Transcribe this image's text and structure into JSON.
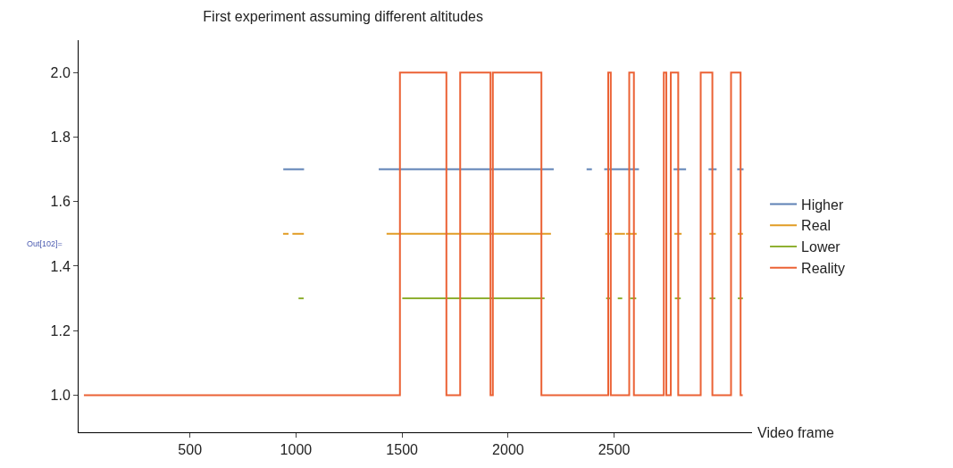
{
  "chart_data": {
    "type": "line",
    "title": "First experiment assuming different altitudes",
    "xlabel": "Video frame",
    "annotations": [
      "Out[102]="
    ],
    "xlim": [
      -25,
      3150
    ],
    "xticks": [
      500,
      1000,
      1500,
      2000,
      2500
    ],
    "ylim": [
      0.885,
      2.1
    ],
    "yticks": [
      {
        "value": 1.0,
        "label": "1.0"
      },
      {
        "value": 1.2,
        "label": "1.2"
      },
      {
        "value": 1.4,
        "label": "1.4"
      },
      {
        "value": 1.6,
        "label": "1.6"
      },
      {
        "value": 1.8,
        "label": "1.8"
      },
      {
        "value": 2.0,
        "label": "2.0"
      }
    ],
    "legend": "right",
    "series": [
      {
        "name": "Higher",
        "color": "#5e81b5",
        "x": [
          940,
          1038,
          1039,
          1390,
          2215,
          2216,
          2370,
          2395,
          2396,
          2453,
          2617,
          2618,
          2780,
          2839,
          2840,
          2945,
          2983,
          2984,
          3080,
          3110
        ],
        "values": [
          1.7,
          1.7,
          null,
          1.7,
          1.7,
          null,
          1.7,
          1.7,
          null,
          1.7,
          1.7,
          null,
          1.7,
          1.7,
          null,
          1.7,
          1.7,
          null,
          1.7,
          1.7
        ]
      },
      {
        "name": "Real",
        "color": "#e19c24",
        "x": [
          939,
          965,
          966,
          983,
          1037,
          1038,
          1427,
          2202,
          2203,
          2458,
          2488,
          2489,
          2501,
          2551,
          2552,
          2556,
          2606,
          2607,
          2784,
          2818,
          2819,
          2949,
          2979,
          2980,
          3083,
          3107
        ],
        "values": [
          1.5,
          1.5,
          null,
          1.5,
          1.5,
          null,
          1.5,
          1.5,
          null,
          1.5,
          1.5,
          null,
          1.5,
          1.5,
          null,
          1.5,
          1.5,
          null,
          1.5,
          1.5,
          null,
          1.5,
          1.5,
          null,
          1.5,
          1.5
        ]
      },
      {
        "name": "Lower",
        "color": "#8fb032",
        "x": [
          1012,
          1036,
          1037,
          1501,
          2172,
          2173,
          2462,
          2483,
          2484,
          2517,
          2538,
          2539,
          2575,
          2604,
          2605,
          2786,
          2814,
          2815,
          2950,
          2977,
          2978,
          3083,
          3107
        ],
        "values": [
          1.3,
          1.3,
          null,
          1.3,
          1.3,
          null,
          1.3,
          1.3,
          null,
          1.3,
          1.3,
          null,
          1.3,
          1.3,
          null,
          1.3,
          1.3,
          null,
          1.3,
          1.3,
          null,
          1.3,
          1.3
        ]
      },
      {
        "name": "Reality",
        "type": "step",
        "color": "#eb6235",
        "x": [
          0,
          1490,
          1709,
          1774,
          1917,
          1928,
          2157,
          2472,
          2484,
          2571,
          2593,
          2734,
          2746,
          2767,
          2802,
          2908,
          2963,
          3051,
          3096,
          3106
        ],
        "values": [
          1,
          2,
          1,
          2,
          1,
          2,
          1,
          2,
          1,
          2,
          1,
          2,
          1,
          2,
          1,
          2,
          1,
          2,
          1,
          1
        ]
      }
    ]
  }
}
